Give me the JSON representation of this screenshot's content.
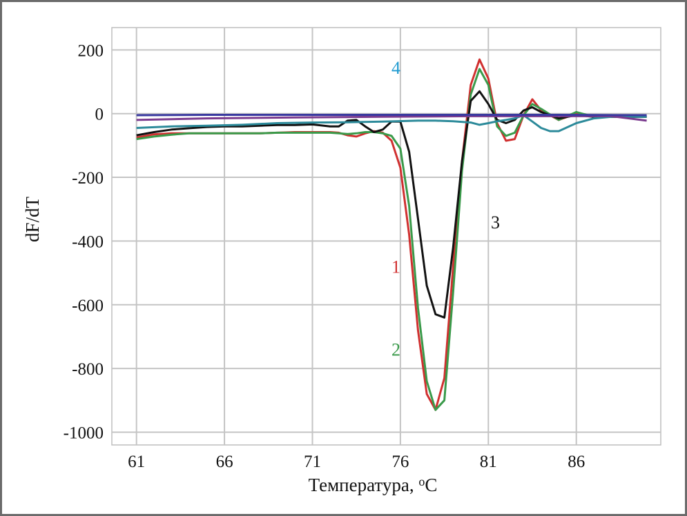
{
  "chart_data": {
    "type": "line",
    "xlabel": "Температура, ",
    "xlabel_unit": "oC",
    "ylabel": "dF/dT",
    "xlim": [
      59.6,
      90.8
    ],
    "ylim": [
      -1040,
      270
    ],
    "xticks": [
      61,
      66,
      71,
      76,
      81,
      86
    ],
    "yticks": [
      200,
      0,
      -200,
      -400,
      -600,
      -800,
      -1000
    ],
    "xtick_labels": [
      "61",
      "66",
      "71",
      "76",
      "81",
      "86"
    ],
    "ytick_labels": [
      "200",
      "0",
      "-200",
      "-400",
      "-600",
      "-800",
      "-1000"
    ],
    "grid": true,
    "series": [
      {
        "name": "1",
        "color": "#d03030",
        "x": [
          61,
          62,
          63,
          64,
          65,
          66,
          67,
          68,
          69,
          70,
          71,
          72,
          72.5,
          73,
          73.5,
          74,
          74.5,
          75,
          75.5,
          76,
          76.5,
          77,
          77.5,
          78,
          78.5,
          79,
          79.5,
          80,
          80.5,
          81,
          81.5,
          82,
          82.5,
          83,
          83.5,
          84,
          85,
          86,
          87,
          88,
          89,
          90
        ],
        "y": [
          -75,
          -65,
          -62,
          -62,
          -62,
          -62,
          -62,
          -62,
          -60,
          -58,
          -58,
          -58,
          -60,
          -68,
          -72,
          -62,
          -55,
          -60,
          -85,
          -170,
          -380,
          -680,
          -880,
          -930,
          -830,
          -480,
          -150,
          90,
          170,
          110,
          -30,
          -85,
          -80,
          -5,
          45,
          10,
          -20,
          0,
          -10,
          -10,
          -10,
          -10
        ]
      },
      {
        "name": "2",
        "color": "#3a9a4a",
        "x": [
          61,
          62,
          63,
          64,
          65,
          66,
          67,
          68,
          69,
          70,
          71,
          72,
          72.5,
          73,
          73.5,
          74,
          74.5,
          75,
          75.5,
          76,
          76.5,
          77,
          77.5,
          78,
          78.5,
          79,
          79.5,
          80,
          80.5,
          81,
          81.5,
          82,
          82.5,
          83,
          83.5,
          84,
          85,
          86,
          87,
          88,
          89,
          90
        ],
        "y": [
          -80,
          -72,
          -66,
          -62,
          -62,
          -62,
          -62,
          -62,
          -60,
          -60,
          -60,
          -60,
          -62,
          -64,
          -62,
          -58,
          -58,
          -62,
          -70,
          -110,
          -290,
          -610,
          -840,
          -930,
          -900,
          -560,
          -180,
          60,
          140,
          90,
          -40,
          -70,
          -60,
          -5,
          30,
          15,
          -20,
          5,
          -10,
          -10,
          -10,
          -10
        ]
      },
      {
        "name": "3",
        "color": "#111111",
        "x": [
          61,
          62,
          63,
          64,
          65,
          66,
          67,
          68,
          69,
          70,
          71,
          72,
          72.5,
          73,
          73.5,
          74,
          74.5,
          75,
          75.5,
          76,
          76.5,
          77,
          77.5,
          78,
          78.5,
          79,
          79.5,
          80,
          80.5,
          81,
          81.5,
          82,
          82.5,
          83,
          83.5,
          84,
          85,
          86,
          87,
          88,
          89,
          90
        ],
        "y": [
          -68,
          -58,
          -50,
          -46,
          -42,
          -40,
          -40,
          -38,
          -36,
          -36,
          -34,
          -40,
          -40,
          -22,
          -20,
          -40,
          -58,
          -50,
          -25,
          -25,
          -120,
          -330,
          -540,
          -630,
          -640,
          -420,
          -150,
          40,
          70,
          30,
          -20,
          -30,
          -20,
          10,
          20,
          5,
          -15,
          -5,
          -10,
          -10,
          -10,
          -10
        ]
      },
      {
        "name": "4",
        "color": "#2c8a9a",
        "x": [
          61,
          63,
          65,
          67,
          69,
          71,
          73,
          75,
          77,
          78,
          79,
          80,
          80.5,
          81,
          81.5,
          82,
          82.5,
          83,
          83.5,
          84,
          84.5,
          85,
          86,
          87,
          88,
          89,
          90
        ],
        "y": [
          -45,
          -40,
          -38,
          -35,
          -30,
          -28,
          -27,
          -25,
          -22,
          -22,
          -24,
          -28,
          -35,
          -30,
          -24,
          -20,
          -15,
          -5,
          -25,
          -45,
          -55,
          -55,
          -30,
          -15,
          -10,
          -10,
          -10
        ]
      },
      {
        "name": "",
        "color": "#7a3a8e",
        "x": [
          61,
          65,
          70,
          75,
          80,
          85,
          88,
          89,
          90
        ],
        "y": [
          -20,
          -15,
          -12,
          -10,
          -8,
          -8,
          -8,
          -15,
          -22
        ]
      },
      {
        "name": "",
        "color": "#3a3aa0",
        "x": [
          61,
          65,
          70,
          75,
          80,
          85,
          90
        ],
        "y": [
          -5,
          -4,
          -4,
          -4,
          -4,
          -4,
          -5
        ]
      }
    ],
    "annotations": [
      {
        "text": "1",
        "x": 75.75,
        "y": -500,
        "color": "#d03030"
      },
      {
        "text": "2",
        "x": 75.75,
        "y": -760,
        "color": "#3a9a4a"
      },
      {
        "text": "3",
        "x": 81.4,
        "y": -360,
        "color": "#111111"
      },
      {
        "text": "4",
        "x": 75.75,
        "y": 125,
        "color": "#1f9ad0"
      }
    ]
  }
}
